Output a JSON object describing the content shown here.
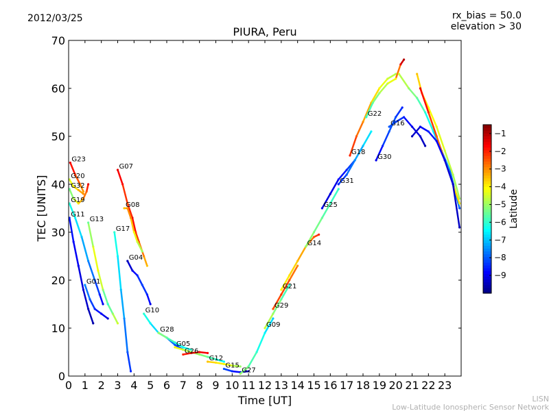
{
  "header": {
    "date": "2012/03/25",
    "rx_bias": "rx_bias = 50.0",
    "elevation": "elevation > 30"
  },
  "watermark": {
    "line1": "LISN",
    "line2": "Low-Latitude Ionospheric Sensor Network"
  },
  "chart_data": {
    "type": "scatter",
    "title": "PIURA, Peru",
    "xlabel": "Time [UT]",
    "ylabel": "TEC [UNITS]",
    "xlim": [
      0,
      24
    ],
    "ylim": [
      0,
      70
    ],
    "xticks": [
      "0",
      "1",
      "2",
      "3",
      "4",
      "5",
      "6",
      "7",
      "8",
      "9",
      "10",
      "11",
      "12",
      "13",
      "14",
      "15",
      "16",
      "17",
      "18",
      "19",
      "20",
      "21",
      "22",
      "23"
    ],
    "yticks": [
      "0",
      "10",
      "20",
      "30",
      "40",
      "50",
      "60",
      "70"
    ],
    "grid": false,
    "colorbar": {
      "label": "Latitude",
      "range": [
        -10,
        -0.5
      ],
      "ticks": [
        "−1",
        "−2",
        "−3",
        "−4",
        "−5",
        "−6",
        "−7",
        "−8",
        "−9"
      ],
      "tick_values": [
        -1,
        -2,
        -3,
        -4,
        -5,
        -6,
        -7,
        -8,
        -9
      ],
      "colormap": "jet"
    },
    "series": [
      {
        "name": "G23",
        "points": [
          [
            0.1,
            44.5,
            -1.5
          ],
          [
            0.4,
            42,
            -2.2
          ],
          [
            0.7,
            40,
            -2.8
          ],
          [
            0.9,
            38.5,
            -3.2
          ]
        ]
      },
      {
        "name": "G20",
        "points": [
          [
            0.05,
            41,
            -4.5
          ],
          [
            0.3,
            39.5,
            -4
          ],
          [
            0.6,
            38.8,
            -3.4
          ],
          [
            0.9,
            38,
            -3
          ]
        ]
      },
      {
        "name": "G32",
        "points": [
          [
            0.05,
            39,
            -5.5
          ],
          [
            0.3,
            37,
            -4.8
          ],
          [
            0.6,
            36,
            -3.8
          ],
          [
            0.9,
            37,
            -3
          ],
          [
            1.1,
            38.5,
            -2.5
          ],
          [
            1.2,
            40,
            -1.5
          ]
        ]
      },
      {
        "name": "G19",
        "points": [
          [
            0.05,
            36,
            -6
          ],
          [
            0.4,
            33,
            -6.5
          ],
          [
            0.8,
            29,
            -7
          ],
          [
            1.2,
            24,
            -7.5
          ],
          [
            1.6,
            20,
            -8
          ],
          [
            1.9,
            17,
            -8.5
          ],
          [
            2.1,
            15,
            -9
          ]
        ]
      },
      {
        "name": "G11",
        "points": [
          [
            0.05,
            33,
            -8.5
          ],
          [
            0.3,
            28,
            -8.8
          ],
          [
            0.6,
            23,
            -9
          ],
          [
            0.9,
            18,
            -9.2
          ],
          [
            1.2,
            14,
            -9.4
          ],
          [
            1.5,
            11,
            -9.6
          ]
        ]
      },
      {
        "name": "G01",
        "points": [
          [
            1.0,
            19,
            -7.5
          ],
          [
            1.3,
            16,
            -8
          ],
          [
            1.6,
            14,
            -8.5
          ],
          [
            2.0,
            13,
            -8.8
          ],
          [
            2.4,
            12,
            -9.2
          ]
        ]
      },
      {
        "name": "G13",
        "points": [
          [
            1.2,
            32,
            -5.5
          ],
          [
            1.5,
            27,
            -4.5
          ],
          [
            1.8,
            22,
            -4
          ],
          [
            2.1,
            18,
            -5
          ],
          [
            2.4,
            15,
            -6
          ],
          [
            2.7,
            13,
            -5
          ],
          [
            3.0,
            11,
            -4.5
          ]
        ]
      },
      {
        "name": "G07",
        "points": [
          [
            3.0,
            43,
            -1.5
          ],
          [
            3.3,
            40,
            -1.8
          ],
          [
            3.6,
            36,
            -2.5
          ],
          [
            3.9,
            33,
            -1.5
          ],
          [
            4.1,
            30,
            -2
          ],
          [
            4.3,
            28,
            -2.5
          ],
          [
            4.6,
            25,
            -3
          ],
          [
            4.8,
            23,
            -3.5
          ]
        ]
      },
      {
        "name": "G08",
        "points": [
          [
            3.4,
            35,
            -3.5
          ],
          [
            3.6,
            35,
            -3
          ],
          [
            3.8,
            33,
            -3
          ],
          [
            4.0,
            30,
            -4
          ],
          [
            4.2,
            28,
            -4.5
          ],
          [
            4.5,
            26,
            -5
          ]
        ]
      },
      {
        "name": "G17",
        "points": [
          [
            2.8,
            30,
            -6
          ],
          [
            3.0,
            25,
            -6.5
          ],
          [
            3.2,
            18,
            -7
          ],
          [
            3.4,
            12,
            -7.5
          ],
          [
            3.6,
            5,
            -8
          ],
          [
            3.8,
            1,
            -8.5
          ]
        ]
      },
      {
        "name": "G04",
        "points": [
          [
            3.6,
            24,
            -9.5
          ],
          [
            3.9,
            22,
            -9
          ],
          [
            4.2,
            21,
            -8.5
          ],
          [
            4.5,
            19,
            -8.2
          ],
          [
            4.8,
            17,
            -8.5
          ],
          [
            5.0,
            15,
            -9
          ]
        ]
      },
      {
        "name": "G10",
        "points": [
          [
            4.6,
            13,
            -6
          ],
          [
            5.0,
            11,
            -6.5
          ],
          [
            5.5,
            9,
            -7
          ],
          [
            6.0,
            8,
            -7.5
          ],
          [
            6.5,
            6.5,
            -8
          ],
          [
            7.0,
            5.5,
            -8.5
          ]
        ]
      },
      {
        "name": "G28",
        "points": [
          [
            5.5,
            9,
            -5
          ],
          [
            6.0,
            8,
            -5.5
          ],
          [
            6.5,
            7,
            -6
          ],
          [
            7.0,
            6,
            -6.5
          ],
          [
            7.5,
            5.5,
            -6
          ]
        ]
      },
      {
        "name": "G05",
        "points": [
          [
            6.5,
            6,
            -4
          ],
          [
            7.0,
            5.5,
            -4.5
          ],
          [
            7.5,
            5,
            -5
          ],
          [
            8.0,
            4.5,
            -5
          ],
          [
            8.5,
            4,
            -5.5
          ],
          [
            9.0,
            3.5,
            -6
          ],
          [
            9.5,
            3,
            -6.5
          ]
        ]
      },
      {
        "name": "G26",
        "points": [
          [
            7.0,
            4.5,
            -2
          ],
          [
            7.5,
            4.8,
            -1.8
          ],
          [
            8.0,
            5,
            -1.5
          ],
          [
            8.5,
            4.8,
            -1.7
          ]
        ]
      },
      {
        "name": "G12",
        "points": [
          [
            8.5,
            3,
            -3.5
          ],
          [
            9.0,
            2.8,
            -3.8
          ],
          [
            9.5,
            2.5,
            -4
          ],
          [
            10.0,
            2.2,
            -4.5
          ],
          [
            10.5,
            2,
            -5
          ]
        ]
      },
      {
        "name": "G15",
        "points": [
          [
            9.5,
            1.5,
            -8
          ],
          [
            10.0,
            1,
            -8.5
          ],
          [
            10.5,
            0.8,
            -9
          ],
          [
            11.0,
            1,
            -9.2
          ]
        ]
      },
      {
        "name": "G27",
        "points": [
          [
            10.5,
            0.5,
            -5
          ],
          [
            11.0,
            2,
            -5.5
          ],
          [
            11.5,
            5,
            -6
          ],
          [
            12.0,
            9,
            -6.5
          ],
          [
            12.5,
            12,
            -7
          ]
        ]
      },
      {
        "name": "G09",
        "points": [
          [
            12.0,
            10,
            -4.5
          ],
          [
            12.5,
            13,
            -5
          ],
          [
            13.0,
            16,
            -5.5
          ],
          [
            13.5,
            19,
            -6
          ]
        ]
      },
      {
        "name": "G29",
        "points": [
          [
            12.5,
            14,
            -2.5
          ],
          [
            13.0,
            17,
            -2.2
          ],
          [
            13.5,
            20,
            -2.5
          ],
          [
            14.0,
            23,
            -3
          ]
        ]
      },
      {
        "name": "G21",
        "points": [
          [
            13.0,
            18,
            -4
          ],
          [
            13.5,
            21,
            -3.8
          ],
          [
            14.0,
            24,
            -3.5
          ],
          [
            14.5,
            27,
            -3
          ],
          [
            15.0,
            29,
            -2.5
          ],
          [
            15.3,
            29.5,
            -2
          ]
        ]
      },
      {
        "name": "G14",
        "points": [
          [
            14.5,
            27,
            -5
          ],
          [
            15.0,
            30,
            -5.2
          ],
          [
            15.5,
            33,
            -5.5
          ],
          [
            16.0,
            36,
            -5.8
          ],
          [
            16.5,
            39,
            -6
          ]
        ]
      },
      {
        "name": "G25",
        "points": [
          [
            15.5,
            35,
            -9
          ],
          [
            16.0,
            38,
            -9.2
          ],
          [
            16.5,
            41,
            -8.8
          ],
          [
            17.0,
            43,
            -8.5
          ],
          [
            17.5,
            45,
            -8
          ]
        ]
      },
      {
        "name": "G31",
        "points": [
          [
            16.5,
            40,
            -8.5
          ],
          [
            17.0,
            42,
            -8
          ],
          [
            17.5,
            45,
            -7.5
          ],
          [
            18.0,
            48,
            -7
          ],
          [
            18.5,
            51,
            -6.5
          ]
        ]
      },
      {
        "name": "G18",
        "points": [
          [
            17.2,
            46,
            -2
          ],
          [
            17.6,
            50,
            -2.5
          ],
          [
            18.0,
            53,
            -3
          ],
          [
            18.5,
            57,
            -3.5
          ],
          [
            19.0,
            60,
            -4
          ],
          [
            19.5,
            62,
            -4.5
          ],
          [
            20.0,
            63,
            -4.8
          ]
        ]
      },
      {
        "name": "G22",
        "points": [
          [
            18.2,
            54,
            -6
          ],
          [
            18.6,
            57,
            -5.5
          ],
          [
            19.0,
            59,
            -5
          ],
          [
            19.5,
            61,
            -4.5
          ],
          [
            20.0,
            62,
            -4
          ],
          [
            20.3,
            65,
            -1.5
          ],
          [
            20.5,
            66,
            -1
          ]
        ]
      },
      {
        "name": "G30",
        "points": [
          [
            18.8,
            45,
            -9
          ],
          [
            19.2,
            48,
            -8.5
          ],
          [
            19.6,
            51,
            -8
          ],
          [
            20.0,
            54,
            -8.2
          ],
          [
            20.4,
            56,
            -8.5
          ]
        ]
      },
      {
        "name": "G16",
        "points": [
          [
            19.6,
            52,
            -8
          ],
          [
            20.0,
            53,
            -8.2
          ],
          [
            20.5,
            54,
            -8.5
          ],
          [
            21.0,
            52,
            -9
          ],
          [
            21.5,
            50,
            -9.2
          ],
          [
            21.8,
            48,
            -9.5
          ]
        ]
      },
      {
        "name": "",
        "points": [
          [
            20.2,
            63,
            -4.5
          ],
          [
            20.8,
            60,
            -5
          ],
          [
            21.3,
            58,
            -5.5
          ],
          [
            21.8,
            55,
            -6
          ],
          [
            22.3,
            51,
            -6.5
          ],
          [
            22.8,
            47,
            -7
          ],
          [
            23.3,
            43,
            -7.5
          ],
          [
            23.9,
            35,
            -8
          ]
        ]
      },
      {
        "name": "",
        "points": [
          [
            21.3,
            63,
            -3.5
          ],
          [
            21.6,
            59,
            -3.8
          ],
          [
            22.0,
            56,
            -4
          ],
          [
            22.5,
            52,
            -4.2
          ],
          [
            23.0,
            47,
            -4.5
          ],
          [
            23.5,
            42,
            -4.8
          ],
          [
            23.9,
            37,
            -5
          ]
        ]
      },
      {
        "name": "",
        "points": [
          [
            21.5,
            60,
            -1.5
          ],
          [
            22.0,
            55,
            -2
          ],
          [
            22.5,
            50,
            -2.5
          ],
          [
            23.0,
            45,
            -3
          ],
          [
            23.5,
            40,
            -3.5
          ],
          [
            23.9,
            36,
            -4
          ]
        ]
      },
      {
        "name": "",
        "points": [
          [
            21.0,
            50,
            -9.5
          ],
          [
            21.5,
            52,
            -9
          ],
          [
            22.0,
            51,
            -8.5
          ],
          [
            22.5,
            49,
            -8.8
          ],
          [
            23.0,
            45,
            -9
          ],
          [
            23.5,
            40,
            -9.2
          ],
          [
            23.9,
            31,
            -9.5
          ]
        ]
      }
    ]
  }
}
